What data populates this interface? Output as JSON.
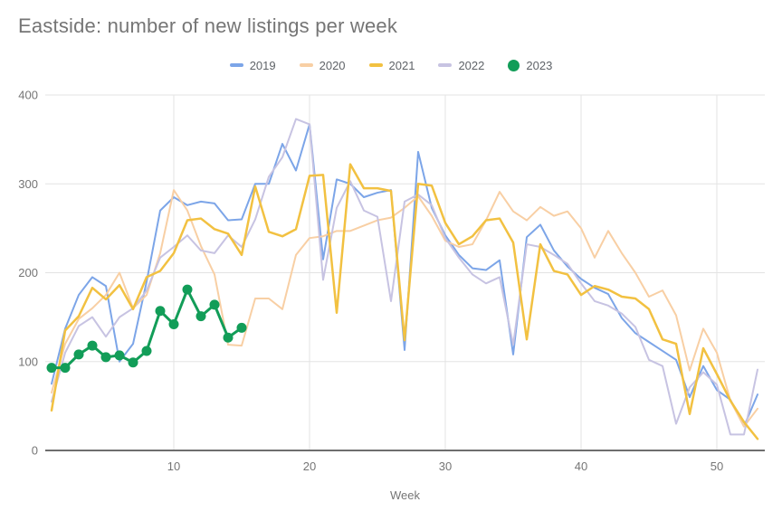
{
  "title": "Eastside: number of new listings per week",
  "axis": {
    "x_title": "Week",
    "x_tick_labels": [
      "10",
      "20",
      "30",
      "40",
      "50"
    ],
    "y_tick_labels": [
      "0",
      "100",
      "200",
      "300",
      "400"
    ]
  },
  "colors": {
    "title_text": "#757575",
    "legend_text": "#5f6368",
    "tick_text": "#757575",
    "gridline": "#e3e3e3",
    "axis_line": "#6e6e6e",
    "background": "#ffffff",
    "series_2019": "#7ca5e8",
    "series_2020": "#f8cfa4",
    "series_2021": "#f2c141",
    "series_2022": "#c7c3e2",
    "series_2023": "#129d58"
  },
  "chart_data": {
    "type": "line",
    "title": "Eastside: number of new listings per week",
    "xlabel": "Week",
    "ylabel": "",
    "xlim": [
      1,
      53
    ],
    "ylim": [
      0,
      400
    ],
    "x_ticks": [
      10,
      20,
      30,
      40,
      50
    ],
    "y_ticks": [
      0,
      100,
      200,
      300,
      400
    ],
    "grid": true,
    "legend_position": "top-center",
    "x_unit": "week number (1 = first week of year)",
    "series": [
      {
        "name": "2019",
        "color": "#7ca5e8",
        "style": "line",
        "line_width": 2,
        "x_start": 1,
        "values": [
          75,
          137,
          175,
          195,
          185,
          100,
          120,
          190,
          270,
          285,
          276,
          280,
          278,
          259,
          260,
          300,
          300,
          345,
          315,
          367,
          215,
          305,
          300,
          285,
          290,
          293,
          113,
          336,
          273,
          242,
          220,
          205,
          203,
          214,
          108,
          240,
          254,
          225,
          207,
          193,
          183,
          176,
          149,
          132,
          122,
          112,
          102,
          60,
          95,
          68,
          57,
          27,
          63
        ]
      },
      {
        "name": "2020",
        "color": "#f8cfa4",
        "style": "line",
        "line_width": 2,
        "x_start": 1,
        "values": [
          65,
          120,
          148,
          160,
          175,
          200,
          160,
          175,
          222,
          293,
          270,
          230,
          198,
          119,
          118,
          171,
          171,
          159,
          220,
          239,
          241,
          247,
          247,
          253,
          259,
          262,
          273,
          286,
          264,
          236,
          229,
          232,
          259,
          291,
          269,
          259,
          274,
          264,
          269,
          250,
          217,
          247,
          222,
          200,
          173,
          180,
          152,
          90,
          137,
          110,
          56,
          27,
          47
        ]
      },
      {
        "name": "2021",
        "color": "#f2c141",
        "style": "line",
        "line_width": 2.5,
        "x_start": 1,
        "values": [
          45,
          135,
          151,
          183,
          170,
          186,
          159,
          195,
          202,
          222,
          259,
          261,
          249,
          244,
          220,
          297,
          246,
          241,
          249,
          309,
          310,
          155,
          322,
          295,
          295,
          292,
          124,
          300,
          298,
          256,
          232,
          241,
          259,
          261,
          234,
          125,
          232,
          202,
          198,
          175,
          185,
          181,
          173,
          171,
          159,
          125,
          120,
          41,
          115,
          86,
          56,
          32,
          13
        ]
      },
      {
        "name": "2022",
        "color": "#c7c3e2",
        "style": "line",
        "line_width": 2,
        "x_start": 1,
        "values": [
          55,
          110,
          140,
          150,
          128,
          150,
          160,
          180,
          217,
          229,
          242,
          225,
          222,
          242,
          229,
          260,
          308,
          330,
          373,
          367,
          192,
          273,
          303,
          270,
          263,
          168,
          280,
          288,
          276,
          239,
          217,
          198,
          188,
          195,
          119,
          232,
          229,
          220,
          210,
          188,
          168,
          163,
          154,
          139,
          102,
          95,
          30,
          71,
          88,
          74,
          18,
          18,
          91
        ]
      },
      {
        "name": "2023",
        "color": "#129d58",
        "style": "line+markers",
        "line_width": 3,
        "marker_radius": 5.5,
        "x_start": 1,
        "values": [
          93,
          93,
          108,
          118,
          105,
          107,
          99,
          112,
          157,
          142,
          181,
          151,
          164,
          127,
          138
        ]
      }
    ]
  }
}
